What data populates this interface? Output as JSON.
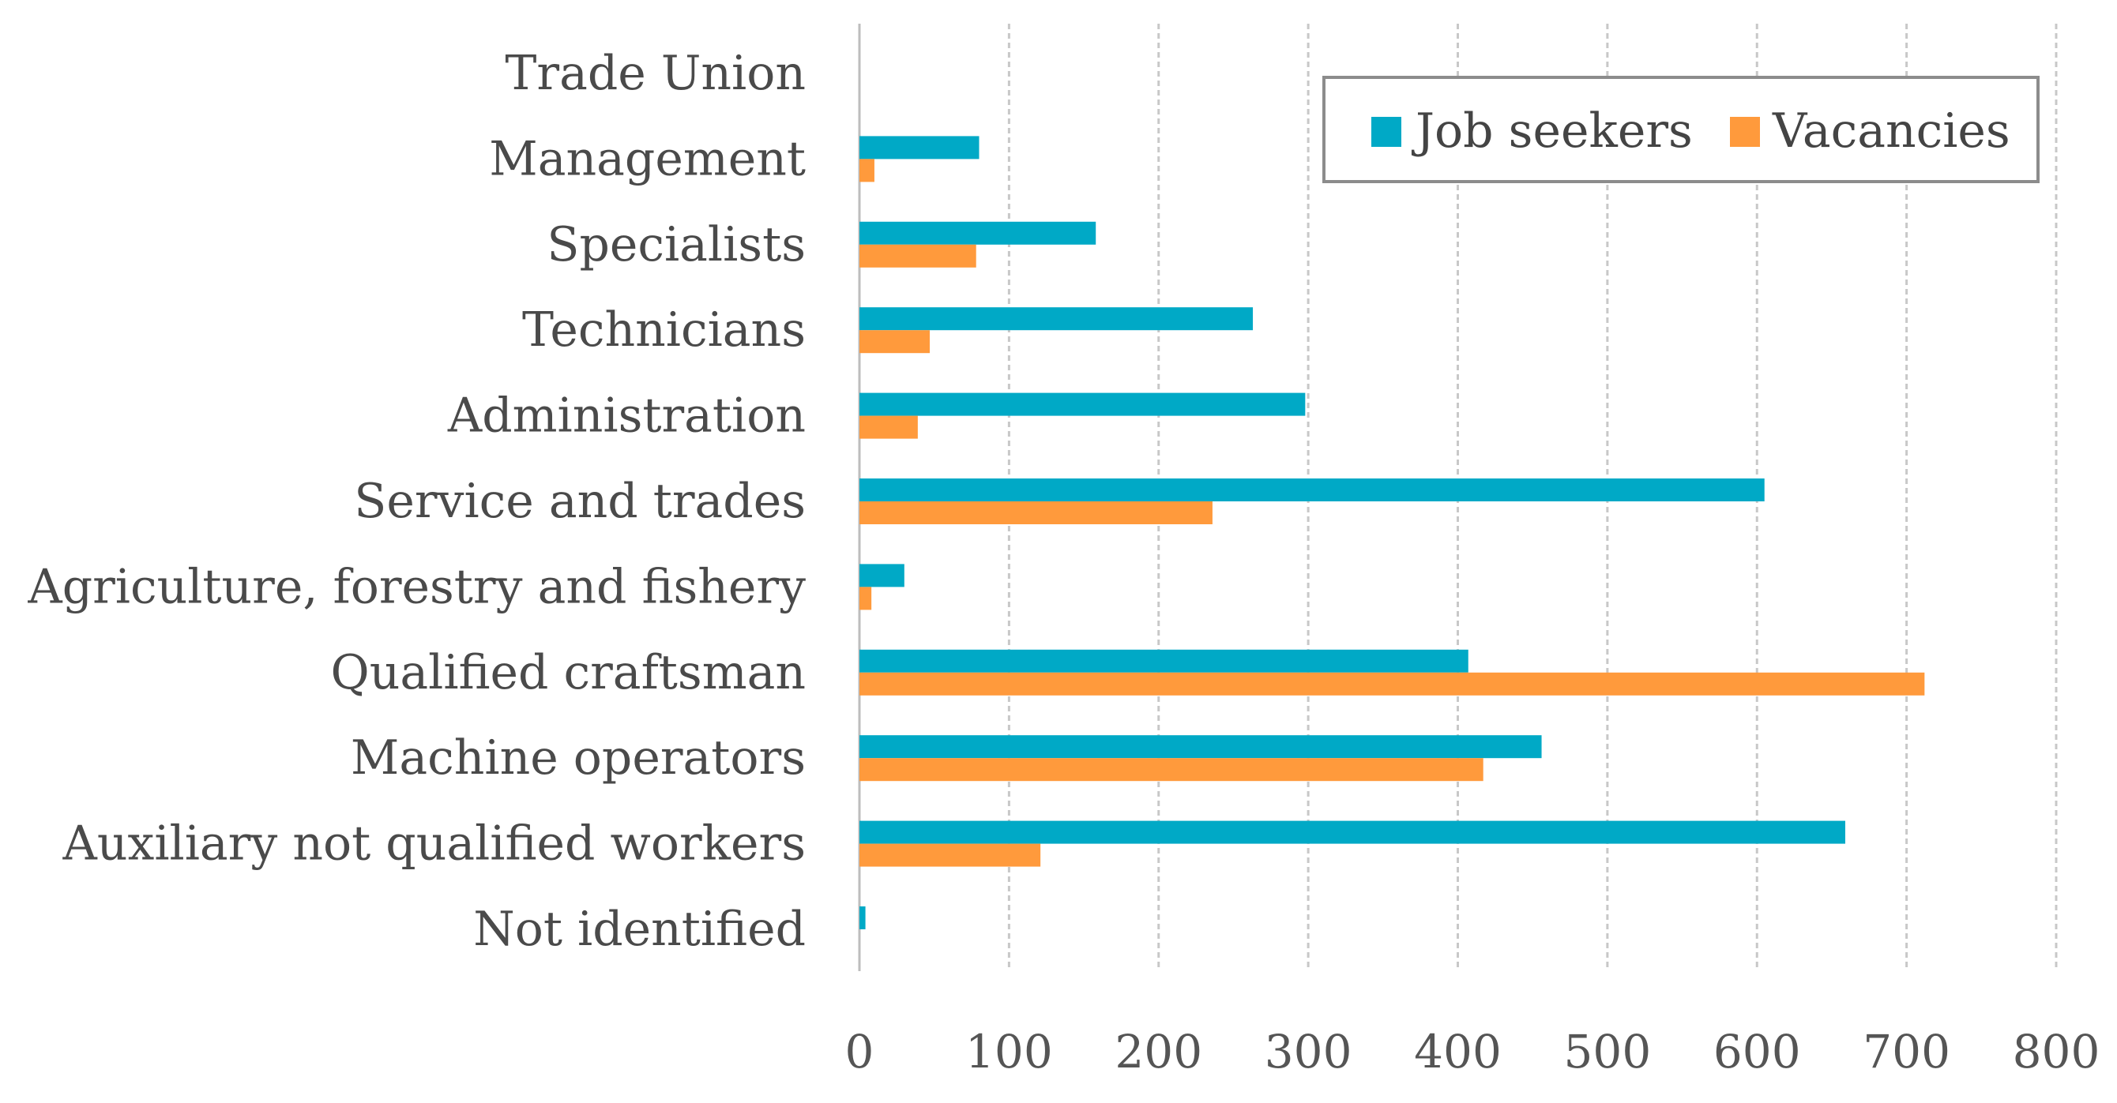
{
  "chart_data": {
    "type": "bar",
    "orientation": "horizontal",
    "title": "",
    "xlabel": "",
    "ylabel": "",
    "xlim": [
      0,
      800
    ],
    "ticks": [
      0,
      100,
      200,
      300,
      400,
      500,
      600,
      700,
      800
    ],
    "tick_labels": [
      "0",
      "100",
      "200",
      "300",
      "400",
      "500",
      "600",
      "700",
      "800"
    ],
    "grid": true,
    "legend_position": "top-right",
    "categories": [
      "Trade Union",
      "Management",
      "Specialists",
      "Technicians",
      "Administration",
      "Service and trades",
      "Agriculture, forestry and fishery",
      "Qualified craftsman",
      "Machine operators",
      "Auxiliary not qualified workers",
      "Not identified"
    ],
    "series": [
      {
        "name": "Job seekers",
        "color": "#00A9C6",
        "values": [
          0,
          80,
          158,
          263,
          298,
          605,
          30,
          407,
          456,
          659,
          4
        ]
      },
      {
        "name": "Vacancies",
        "color": "#FF9A3C",
        "values": [
          0,
          10,
          78,
          47,
          39,
          236,
          8,
          712,
          417,
          121,
          0
        ]
      }
    ]
  }
}
